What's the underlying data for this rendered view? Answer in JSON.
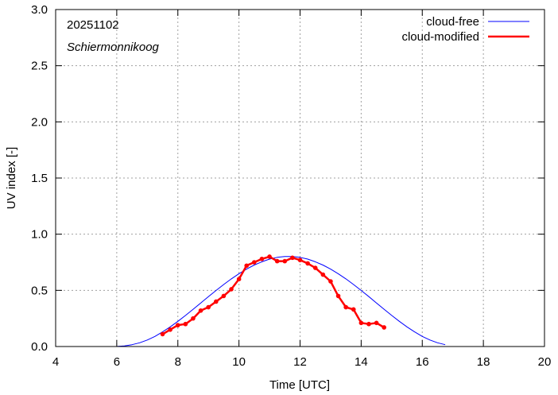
{
  "chart_data": {
    "type": "line",
    "xlabel": "Time  [UTC]",
    "ylabel": "UV index  [-]",
    "xlim": [
      4,
      20
    ],
    "ylim": [
      0,
      3
    ],
    "xticks": [
      4,
      6,
      8,
      10,
      12,
      14,
      16,
      18,
      20
    ],
    "yticks": [
      0,
      0.5,
      1,
      1.5,
      2,
      2.5,
      3
    ],
    "xtick_labels": [
      "4",
      "6",
      "8",
      "10",
      "12",
      "14",
      "16",
      "18",
      "20"
    ],
    "ytick_labels": [
      "0.0",
      "0.5",
      "1.0",
      "1.5",
      "2.0",
      "2.5",
      "3.0"
    ],
    "grid": true,
    "legend_position": "top-right",
    "annotations": {
      "date": "20251102",
      "location": "Schiermonnikoog"
    },
    "series": [
      {
        "name": "cloud-free",
        "color": "#0000ff",
        "markers": false,
        "x": [
          5.8,
          6.0,
          6.25,
          6.5,
          6.75,
          7.0,
          7.25,
          7.5,
          7.75,
          8.0,
          8.25,
          8.5,
          8.75,
          9.0,
          9.25,
          9.5,
          9.75,
          10.0,
          10.25,
          10.5,
          10.75,
          11.0,
          11.25,
          11.5,
          11.75,
          12.0,
          12.25,
          12.5,
          12.75,
          13.0,
          13.25,
          13.5,
          13.75,
          14.0,
          14.25,
          14.5,
          14.75,
          15.0,
          15.25,
          15.5,
          15.75,
          16.0,
          16.25,
          16.5,
          16.75
        ],
        "values": [
          0.0,
          0.001,
          0.006,
          0.016,
          0.033,
          0.058,
          0.09,
          0.13,
          0.175,
          0.224,
          0.277,
          0.332,
          0.388,
          0.444,
          0.499,
          0.552,
          0.602,
          0.648,
          0.689,
          0.725,
          0.754,
          0.778,
          0.794,
          0.802,
          0.802,
          0.794,
          0.778,
          0.754,
          0.725,
          0.689,
          0.648,
          0.602,
          0.552,
          0.499,
          0.444,
          0.388,
          0.332,
          0.277,
          0.224,
          0.175,
          0.13,
          0.09,
          0.058,
          0.033,
          0.016
        ]
      },
      {
        "name": "cloud-modified",
        "color": "#ff0000",
        "markers": true,
        "x": [
          7.5,
          7.75,
          8.0,
          8.25,
          8.5,
          8.75,
          9.0,
          9.25,
          9.5,
          9.75,
          10.0,
          10.25,
          10.5,
          10.75,
          11.0,
          11.25,
          11.5,
          11.75,
          12.0,
          12.25,
          12.5,
          12.75,
          13.0,
          13.25,
          13.5,
          13.75,
          14.0,
          14.25,
          14.5,
          14.75
        ],
        "values": [
          0.11,
          0.15,
          0.19,
          0.2,
          0.25,
          0.32,
          0.35,
          0.4,
          0.45,
          0.51,
          0.6,
          0.72,
          0.75,
          0.78,
          0.8,
          0.76,
          0.76,
          0.79,
          0.77,
          0.74,
          0.7,
          0.64,
          0.58,
          0.45,
          0.35,
          0.33,
          0.21,
          0.2,
          0.21,
          0.17
        ]
      }
    ]
  }
}
